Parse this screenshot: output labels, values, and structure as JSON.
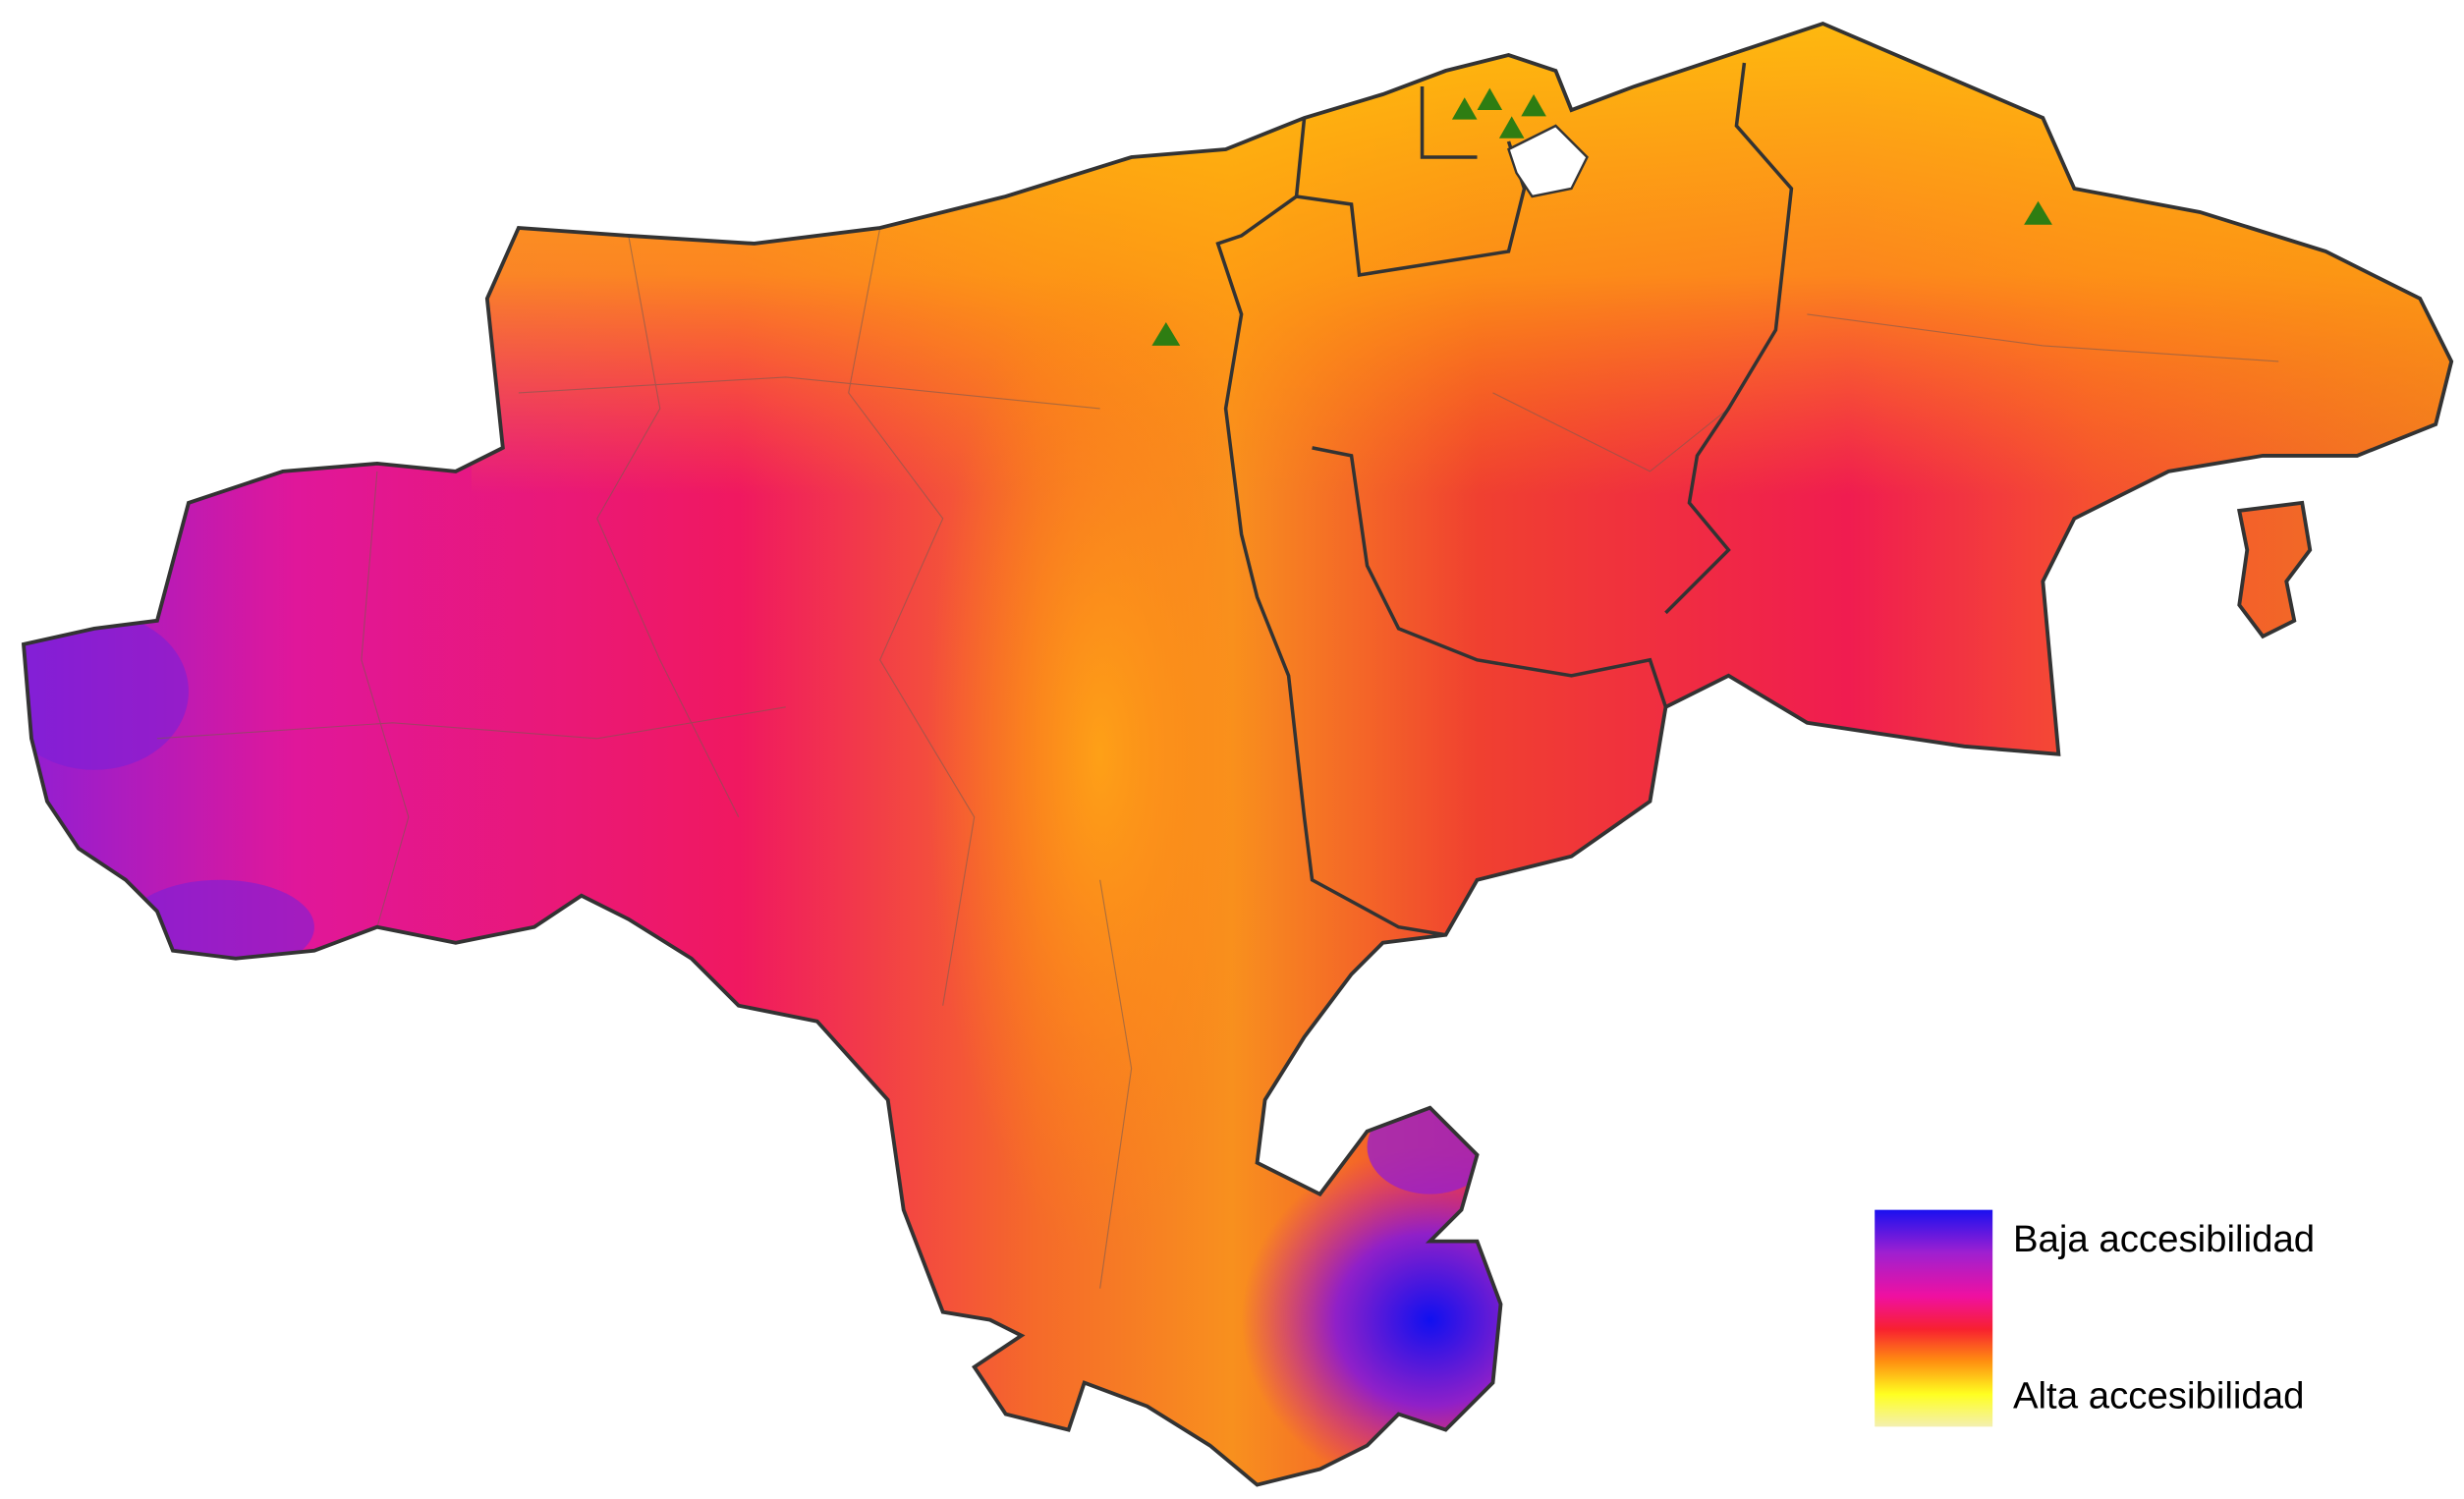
{
  "legend": {
    "items": [
      "Baja accesibilidad",
      "Alta accesibilidad"
    ]
  }
}
